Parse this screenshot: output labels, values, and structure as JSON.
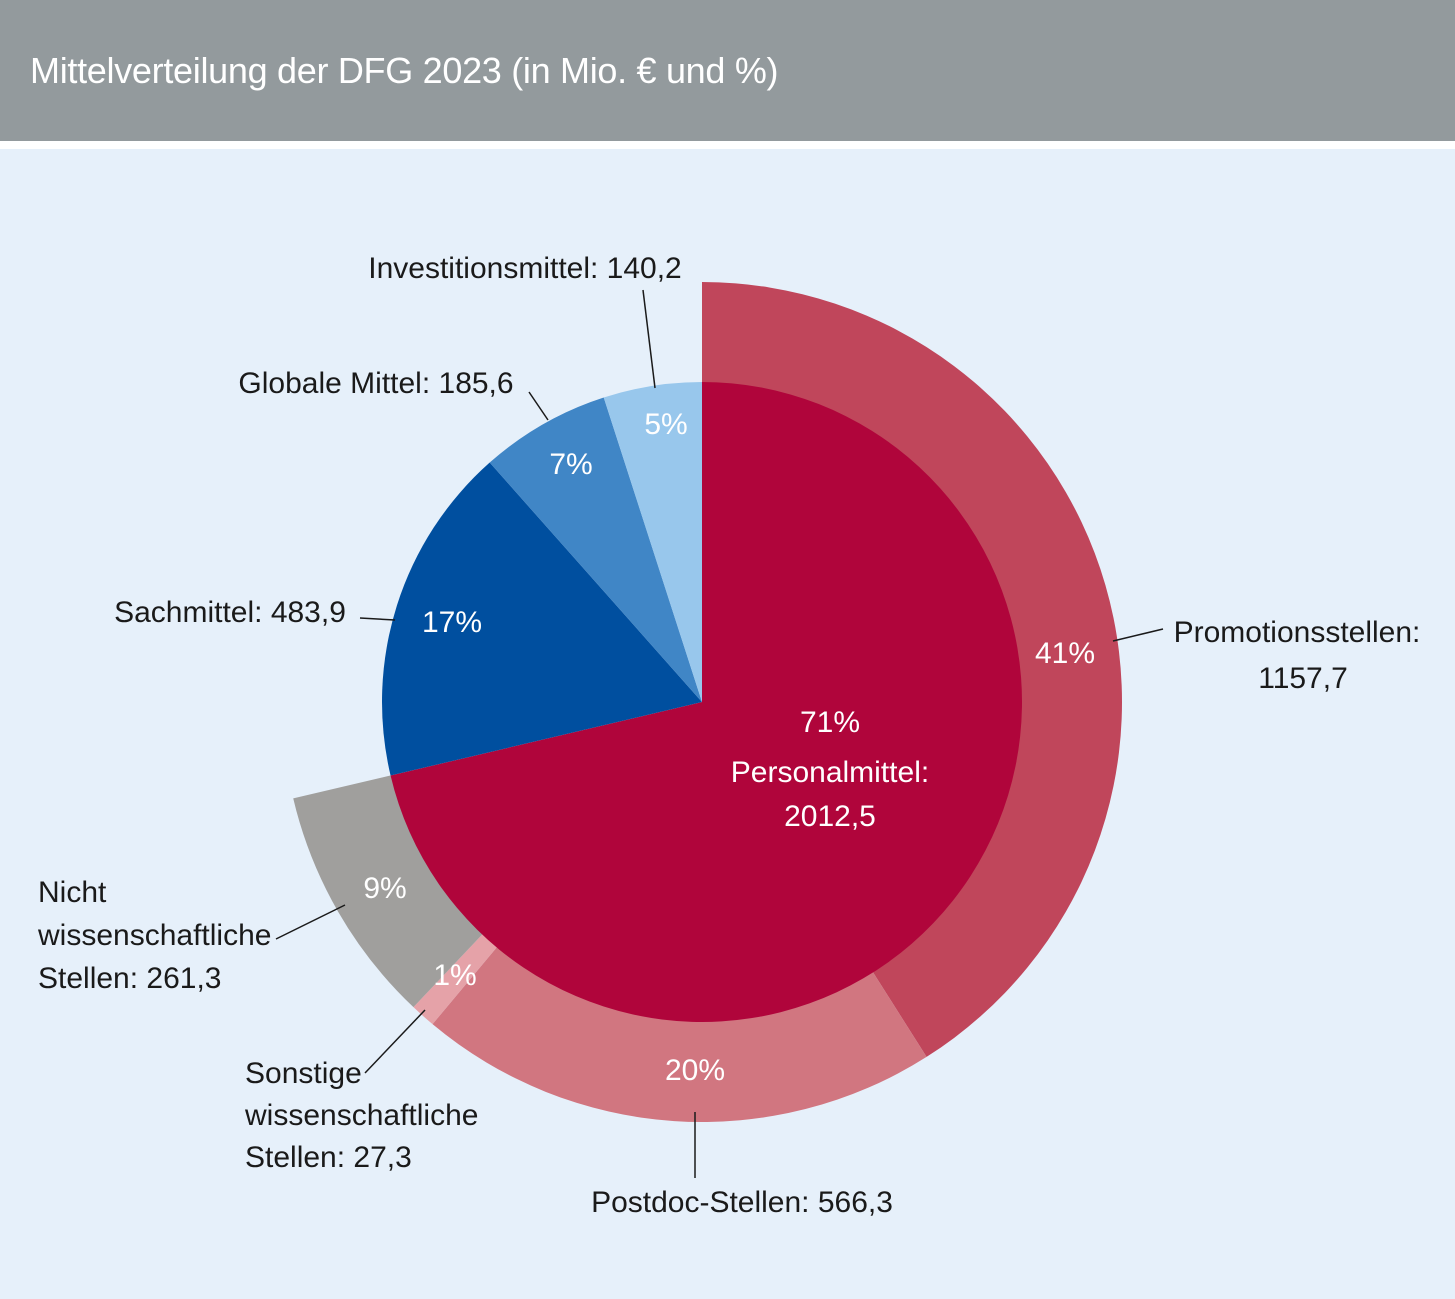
{
  "title": "Mittelverteilung der DFG 2023 (in Mio. € und %)",
  "colors": {
    "header_bg": "#939a9d",
    "panel_bg": "#e6f0fa",
    "personalmittel": "#b0053b",
    "promotionsstellen": "#c0465b",
    "postdoc": "#d17680",
    "sonstige": "#e5a2a8",
    "nicht_wiss": "#a09f9d",
    "sachmittel": "#004f9f",
    "globale": "#4086c6",
    "investition": "#98c7ec"
  },
  "chart_data": {
    "type": "pie",
    "unit": "Mio. €",
    "inner": {
      "slices": [
        {
          "key": "personalmittel",
          "name": "Personalmittel",
          "value": 2012.5,
          "percent": 71,
          "label": "Personalmittel:",
          "value_label": "2012,5",
          "pct_label": "71%"
        },
        {
          "key": "sachmittel",
          "name": "Sachmittel",
          "value": 483.9,
          "percent": 17,
          "label": "Sachmittel: 483,9",
          "pct_label": "17%"
        },
        {
          "key": "globale",
          "name": "Globale Mittel",
          "value": 185.6,
          "percent": 7,
          "label": "Globale Mittel: 185,6",
          "pct_label": "7%"
        },
        {
          "key": "investition",
          "name": "Investitionsmittel",
          "value": 140.2,
          "percent": 5,
          "label": "Investitionsmittel: 140,2",
          "pct_label": "5%"
        }
      ]
    },
    "outer": {
      "slices": [
        {
          "key": "promotionsstellen",
          "name": "Promotionsstellen",
          "value": 1157.7,
          "percent": 41,
          "label_lines": [
            "Promotionsstellen:",
            "1157,7"
          ],
          "pct_label": "41%"
        },
        {
          "key": "postdoc",
          "name": "Postdoc-Stellen",
          "value": 566.3,
          "percent": 20,
          "label_lines": [
            "Postdoc-Stellen: 566,3"
          ],
          "pct_label": "20%"
        },
        {
          "key": "sonstige",
          "name": "Sonstige wissenschaftliche Stellen",
          "value": 27.3,
          "percent": 1,
          "label_lines": [
            "Sonstige",
            "wissenschaftliche",
            "Stellen: 27,3"
          ],
          "pct_label": "1%"
        },
        {
          "key": "nicht_wiss",
          "name": "Nicht wissenschaftliche Stellen",
          "value": 261.3,
          "percent": 9,
          "label_lines": [
            "Nicht",
            "wissenschaftliche",
            "Stellen: 261,3"
          ],
          "pct_label": "9%"
        }
      ]
    }
  }
}
